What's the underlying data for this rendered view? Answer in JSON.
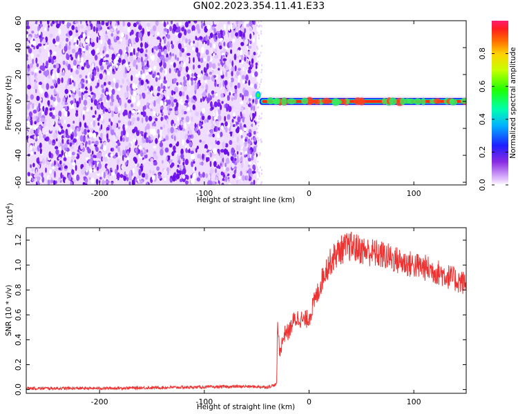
{
  "title": "GN02.2023.354.11.41.E33",
  "colors": {
    "background": "#ffffff",
    "snr_line": "#ee3333",
    "noise_purple": "#7a1ff0",
    "signal_red": "#e8321e"
  },
  "chart_data": [
    {
      "type": "heatmap",
      "title": "",
      "xlabel": "Height of straight line (km)",
      "ylabel": "Frequency (Hz)",
      "xlim": [
        -270,
        150
      ],
      "ylim": [
        -62,
        60
      ],
      "xticks": [
        -200,
        -100,
        0,
        100
      ],
      "xtick_labels": [
        "-200",
        "-100",
        "0",
        "100"
      ],
      "yticks": [
        -60,
        -40,
        -20,
        0,
        20,
        40,
        60
      ],
      "ytick_labels": [
        "-60",
        "-40",
        "-20",
        "0",
        "20",
        "40",
        "60"
      ],
      "colormap": "rainbow",
      "noise_region_x": [
        -270,
        -50
      ],
      "signal_band": {
        "x_start": -50,
        "x_end": 150,
        "frequency_hz": 0
      },
      "grid": false,
      "colorbar": {
        "label": "Normalized spectral amplitude",
        "range": [
          0,
          1
        ],
        "ticks": [
          0.0,
          0.2,
          0.4,
          0.6,
          0.8
        ],
        "tick_labels": [
          "0.0",
          "0.2",
          "0.4",
          "0.6",
          "0.8"
        ]
      }
    },
    {
      "type": "line",
      "title": "",
      "xlabel": "Height of straight line (km)",
      "ylabel": "SNR (10 * v/v)",
      "y_multiplier": "(x10",
      "y_multiplier_exp": "4",
      "y_multiplier_close": ")",
      "xlim": [
        -270,
        150
      ],
      "ylim": [
        -0.03,
        1.3
      ],
      "xticks": [
        -200,
        -100,
        0,
        100
      ],
      "xtick_labels": [
        "-200",
        "-100",
        "0",
        "100"
      ],
      "yticks": [
        0.0,
        0.2,
        0.4,
        0.6,
        0.8,
        1.0,
        1.2
      ],
      "ytick_labels": [
        "0.0",
        "0.2",
        "0.4",
        "0.6",
        "0.8",
        "1.0",
        "1.2"
      ],
      "grid": false,
      "series": [
        {
          "color": "#ee3333",
          "x": [
            -270,
            -250,
            -200,
            -150,
            -100,
            -60,
            -40,
            -31,
            -30,
            -28,
            -25,
            -22,
            -20,
            -15,
            -10,
            -5,
            0,
            5,
            10,
            15,
            20,
            25,
            30,
            35,
            40,
            50,
            60,
            70,
            80,
            90,
            100,
            110,
            120,
            130,
            140,
            150
          ],
          "y": [
            0.01,
            0.01,
            0.01,
            0.015,
            0.02,
            0.025,
            0.02,
            0.04,
            0.52,
            0.3,
            0.4,
            0.48,
            0.45,
            0.55,
            0.58,
            0.55,
            0.58,
            0.7,
            0.82,
            0.95,
            1.02,
            1.08,
            1.12,
            1.14,
            1.15,
            1.12,
            1.1,
            1.08,
            1.05,
            1.02,
            1.0,
            0.98,
            0.95,
            0.92,
            0.88,
            0.85
          ]
        }
      ]
    }
  ]
}
